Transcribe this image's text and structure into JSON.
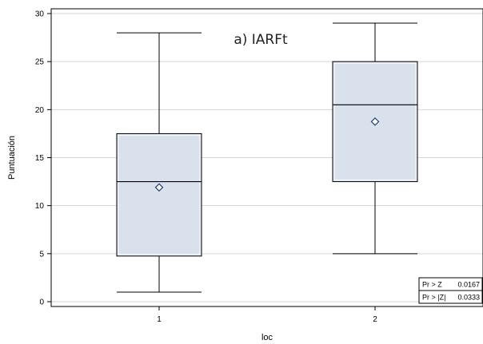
{
  "chart_data": {
    "type": "box",
    "title": "a) IARFt",
    "xlabel": "loc",
    "ylabel": "Puntuación",
    "ylim": [
      -0.5,
      30.5
    ],
    "yticks": [
      0,
      5,
      10,
      15,
      20,
      25,
      30
    ],
    "grid": "horizontal",
    "categories": [
      "1",
      "2"
    ],
    "boxes": [
      {
        "category": "1",
        "min": 1,
        "q1": 4.75,
        "median": 12.5,
        "q3": 17.5,
        "max": 28,
        "mean": 11.9
      },
      {
        "category": "2",
        "min": 5,
        "q1": 12.5,
        "median": 20.5,
        "q3": 25,
        "max": 29,
        "mean": 18.75
      }
    ],
    "stats": [
      {
        "label": "Pr > Z",
        "value": "0.0167"
      },
      {
        "label": "Pr > |Z|",
        "value": "0.0333"
      }
    ],
    "colors": {
      "box_fill": "#d9e1ec",
      "box_stroke": "#000000",
      "grid": "#d6d6d6",
      "mean_marker": "#1f3f6f"
    }
  }
}
